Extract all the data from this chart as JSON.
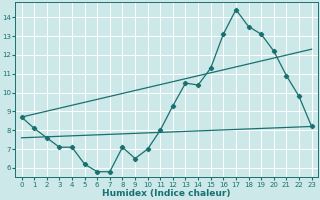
{
  "background_color": "#cce8e8",
  "grid_color": "#ffffff",
  "line_color": "#1a7070",
  "xlabel": "Humidex (Indice chaleur)",
  "xlim": [
    -0.5,
    23.5
  ],
  "ylim": [
    5.5,
    14.8
  ],
  "yticks": [
    6,
    7,
    8,
    9,
    10,
    11,
    12,
    13,
    14
  ],
  "xticks": [
    0,
    1,
    2,
    3,
    4,
    5,
    6,
    7,
    8,
    9,
    10,
    11,
    12,
    13,
    14,
    15,
    16,
    17,
    18,
    19,
    20,
    21,
    22,
    23
  ],
  "series": [
    {
      "x": [
        0,
        1,
        2,
        3,
        4,
        5,
        6,
        7,
        8,
        9,
        10,
        11,
        12,
        13,
        14,
        15,
        16,
        17,
        18,
        19,
        20,
        21,
        22,
        23
      ],
      "y": [
        8.7,
        8.1,
        7.6,
        7.1,
        7.1,
        6.2,
        5.8,
        5.8,
        7.1,
        6.5,
        7.0,
        8.0,
        9.3,
        10.5,
        10.4,
        11.3,
        13.1,
        14.4,
        13.5,
        13.1,
        12.2,
        10.9,
        9.8,
        8.2
      ],
      "marker": "D",
      "markersize": 2.2,
      "linewidth": 0.9
    },
    {
      "x": [
        0,
        23
      ],
      "y": [
        8.7,
        12.3
      ],
      "marker": null,
      "linewidth": 0.9
    },
    {
      "x": [
        0,
        23
      ],
      "y": [
        7.6,
        8.2
      ],
      "marker": null,
      "linewidth": 0.9
    }
  ],
  "tick_labelsize": 5.0,
  "xlabel_fontsize": 6.5,
  "xlabel_fontweight": "bold"
}
